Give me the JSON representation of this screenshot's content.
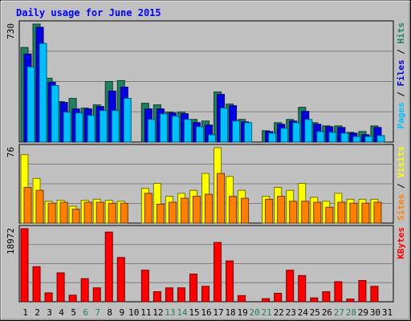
{
  "chart_data": {
    "title": "Daily usage for June 2015",
    "type": "bar",
    "days": [
      "1",
      "2",
      "3",
      "4",
      "5",
      "6",
      "7",
      "8",
      "9",
      "10",
      "11",
      "12",
      "13",
      "14",
      "15",
      "16",
      "17",
      "18",
      "19",
      "20",
      "21",
      "22",
      "23",
      "24",
      "25",
      "26",
      "27",
      "28",
      "29",
      "30",
      "31"
    ],
    "weekend_days": [
      "6",
      "7",
      "13",
      "14",
      "20",
      "21",
      "27",
      "28"
    ],
    "panels": [
      {
        "id": "top",
        "max_label": "730",
        "ymax": 730,
        "legend": [
          {
            "text": "Pages",
            "color": "#00c0ff"
          },
          {
            "text": " / ",
            "color": "#000000"
          },
          {
            "text": "Files",
            "color": "#0000e0"
          },
          {
            "text": " / ",
            "color": "#000000"
          },
          {
            "text": "Hits",
            "color": "#208060"
          }
        ],
        "series": [
          {
            "name": "Hits",
            "color": "#208060",
            "values": [
              585,
              730,
              395,
              250,
              270,
              210,
              230,
              375,
              380,
              0,
              240,
              230,
              185,
              185,
              140,
              130,
              310,
              235,
              140,
              0,
              70,
              120,
              140,
              215,
              120,
              100,
              100,
              60,
              65,
              100,
              0
            ]
          },
          {
            "name": "Files",
            "color": "#0000e0",
            "values": [
              545,
              710,
              370,
              245,
              205,
              205,
              220,
              315,
              340,
              0,
              205,
              205,
              180,
              175,
              120,
              105,
              295,
              225,
              125,
              0,
              65,
              110,
              130,
              190,
              110,
              95,
              90,
              55,
              45,
              90,
              0
            ]
          },
          {
            "name": "Pages",
            "color": "#00c0ff",
            "values": [
              465,
              610,
              350,
              185,
              180,
              165,
              195,
              195,
              270,
              0,
              140,
              175,
              160,
              140,
              95,
              45,
              210,
              130,
              120,
              0,
              55,
              85,
              120,
              140,
              65,
              60,
              55,
              35,
              35,
              40,
              0
            ]
          }
        ]
      },
      {
        "id": "mid",
        "max_label": "76",
        "ymax": 76,
        "legend": [
          {
            "text": "Sites",
            "color": "#ff8000"
          },
          {
            "text": " / ",
            "color": "#000000"
          },
          {
            "text": "Visits",
            "color": "#ffff00"
          }
        ],
        "series": [
          {
            "name": "Visits",
            "color": "#ffff00",
            "values": [
              69,
              45,
              22,
              23,
              17,
              23,
              24,
              23,
              22,
              0,
              35,
              40,
              27,
              30,
              33,
              50,
              76,
              47,
              33,
              0,
              27,
              36,
              33,
              40,
              26,
              22,
              30,
              24,
              24,
              24,
              0
            ]
          },
          {
            "name": "Sites",
            "color": "#ff8000",
            "values": [
              36,
              33,
              20,
              21,
              14,
              21,
              21,
              20,
              20,
              0,
              30,
              19,
              21,
              25,
              27,
              29,
              50,
              27,
              25,
              0,
              24,
              27,
              22,
              22,
              21,
              16,
              21,
              20,
              20,
              21,
              0
            ]
          }
        ]
      },
      {
        "id": "bot",
        "max_label": "18972",
        "ymax": 18972,
        "legend": [
          {
            "text": "KBytes",
            "color": "#ff0000"
          }
        ],
        "series": [
          {
            "name": "KBytes",
            "color": "#ff0000",
            "values": [
              18972,
              9100,
              2300,
              7500,
              1700,
              6000,
              3600,
              18100,
              11500,
              0,
              8200,
              2600,
              3600,
              3600,
              7200,
              4000,
              15400,
              10600,
              1600,
              0,
              800,
              2200,
              8200,
              6800,
              1000,
              2600,
              5200,
              700,
              5500,
              4000,
              0
            ]
          }
        ]
      }
    ]
  }
}
